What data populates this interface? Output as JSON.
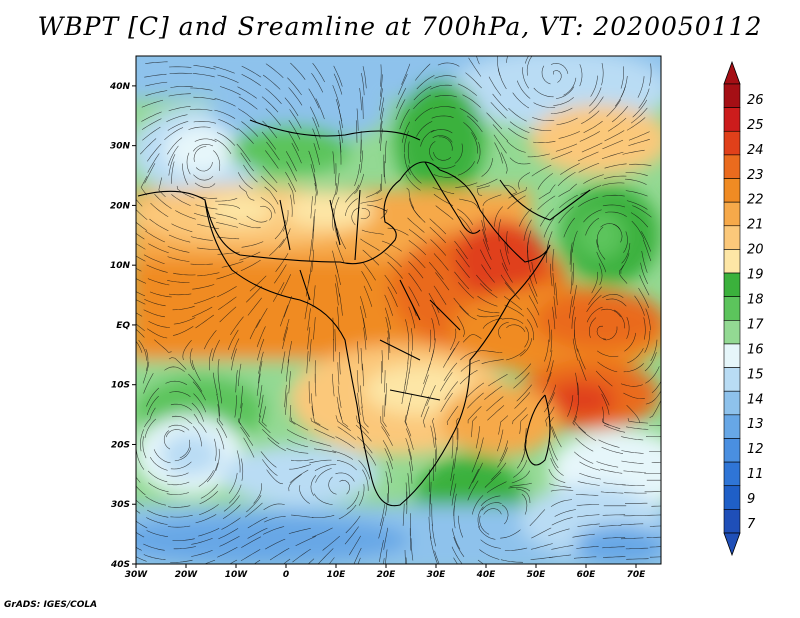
{
  "title": "WBPT [C] and Sreamline at 700hPa, VT: 2020050112",
  "credit": "GrADS: IGES/COLA",
  "map": {
    "lon_range": [
      -30,
      75
    ],
    "lat_range": [
      -40,
      45
    ],
    "lon_ticks": [
      "30W",
      "20W",
      "10W",
      "0",
      "10E",
      "20E",
      "30E",
      "40E",
      "50E",
      "60E",
      "70E"
    ],
    "lat_ticks": [
      "40N",
      "30N",
      "20N",
      "10N",
      "EQ",
      "10S",
      "20S",
      "30S",
      "40S"
    ]
  },
  "colorbar": {
    "labels": [
      "26",
      "25",
      "24",
      "23",
      "22",
      "21",
      "20",
      "19",
      "18",
      "17",
      "16",
      "15",
      "14",
      "13",
      "12",
      "11",
      "9",
      "7"
    ],
    "colors": [
      "#a50f15",
      "#cc1c1c",
      "#e0401a",
      "#ea6b1e",
      "#f08b23",
      "#f6a94a",
      "#fbc87a",
      "#fde6a6",
      "#3bb13c",
      "#5cc45c",
      "#93d993",
      "#e6f6fa",
      "#b9dcf4",
      "#8ec2ec",
      "#67a7e6",
      "#4a8fe0",
      "#2f75d6",
      "#1f5fc7",
      "#1f4fb8"
    ]
  }
}
